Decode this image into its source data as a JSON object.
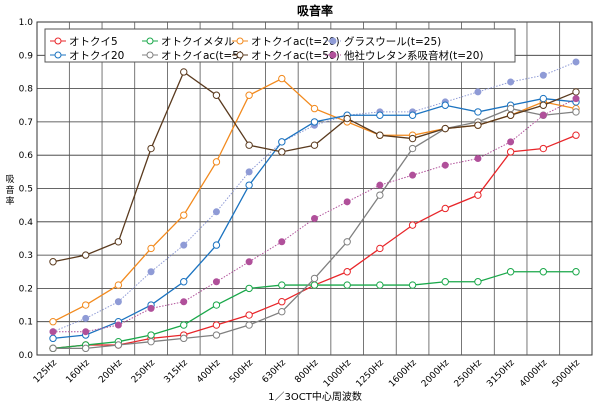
{
  "chart_data": {
    "type": "line",
    "title": "吸音率",
    "ylabel": "吸音率",
    "xlabel": "1／3OCT中心周波数",
    "ylim": [
      0,
      1.0
    ],
    "yticks": [
      "0.0",
      "0.1",
      "0.2",
      "0.3",
      "0.4",
      "0.5",
      "0.6",
      "0.7",
      "0.8",
      "0.9",
      "1.0"
    ],
    "grid": true,
    "legend_placement": "top",
    "categories": [
      "125Hz",
      "160Hz",
      "200Hz",
      "250Hz",
      "315Hz",
      "400Hz",
      "500Hz",
      "630Hz",
      "800Hz",
      "1000Hz",
      "1250Hz",
      "1600Hz",
      "2000Hz",
      "2500Hz",
      "3150Hz",
      "4000Hz",
      "5000Hz"
    ],
    "series": [
      {
        "name": "オトクイ5",
        "color": "#e8262a",
        "marker": "open",
        "values": [
          0.02,
          0.03,
          0.03,
          0.05,
          0.06,
          0.09,
          0.12,
          0.16,
          0.21,
          0.25,
          0.32,
          0.39,
          0.44,
          0.48,
          0.61,
          0.62,
          0.66
        ]
      },
      {
        "name": "オトクイメタル",
        "color": "#1aa84a",
        "marker": "open",
        "values": [
          0.02,
          0.03,
          0.04,
          0.06,
          0.09,
          0.15,
          0.2,
          0.21,
          0.21,
          0.21,
          0.21,
          0.21,
          0.22,
          0.22,
          0.25,
          0.25,
          0.25
        ]
      },
      {
        "name": "オトクイac(t=20)",
        "color": "#f28a1e",
        "marker": "open",
        "values": [
          0.1,
          0.15,
          0.21,
          0.32,
          0.42,
          0.58,
          0.78,
          0.83,
          0.74,
          0.7,
          0.66,
          0.66,
          0.68,
          0.69,
          0.72,
          0.76,
          0.74
        ]
      },
      {
        "name": "グラスウール(t=25)",
        "color": "#8f9bd6",
        "marker": "filled",
        "dotted": true,
        "values": [
          0.07,
          0.11,
          0.16,
          0.25,
          0.33,
          0.43,
          0.55,
          0.64,
          0.69,
          0.72,
          0.73,
          0.73,
          0.76,
          0.79,
          0.82,
          0.84,
          0.88
        ]
      },
      {
        "name": "オトクイ20",
        "color": "#1b73c0",
        "marker": "open",
        "values": [
          0.05,
          0.06,
          0.1,
          0.15,
          0.22,
          0.33,
          0.51,
          0.64,
          0.7,
          0.72,
          0.72,
          0.72,
          0.75,
          0.73,
          0.75,
          0.77,
          0.76
        ]
      },
      {
        "name": "オトクイac(t=5)",
        "color": "#808080",
        "marker": "open",
        "values": [
          0.02,
          0.02,
          0.03,
          0.04,
          0.05,
          0.06,
          0.09,
          0.13,
          0.23,
          0.34,
          0.48,
          0.62,
          0.68,
          0.7,
          0.74,
          0.72,
          0.73
        ]
      },
      {
        "name": "オトクイac(t=50)",
        "color": "#5a3a1e",
        "marker": "open",
        "values": [
          0.28,
          0.3,
          0.34,
          0.62,
          0.85,
          0.78,
          0.63,
          0.61,
          0.63,
          0.71,
          0.66,
          0.65,
          0.68,
          0.69,
          0.72,
          0.75,
          0.79
        ]
      },
      {
        "name": "他社ウレタン系吸音材(t=20)",
        "color": "#b0509a",
        "marker": "filled",
        "dotted": true,
        "values": [
          0.07,
          0.07,
          0.09,
          0.14,
          0.16,
          0.22,
          0.28,
          0.34,
          0.41,
          0.46,
          0.51,
          0.54,
          0.57,
          0.59,
          0.64,
          0.72,
          0.77
        ]
      }
    ]
  }
}
